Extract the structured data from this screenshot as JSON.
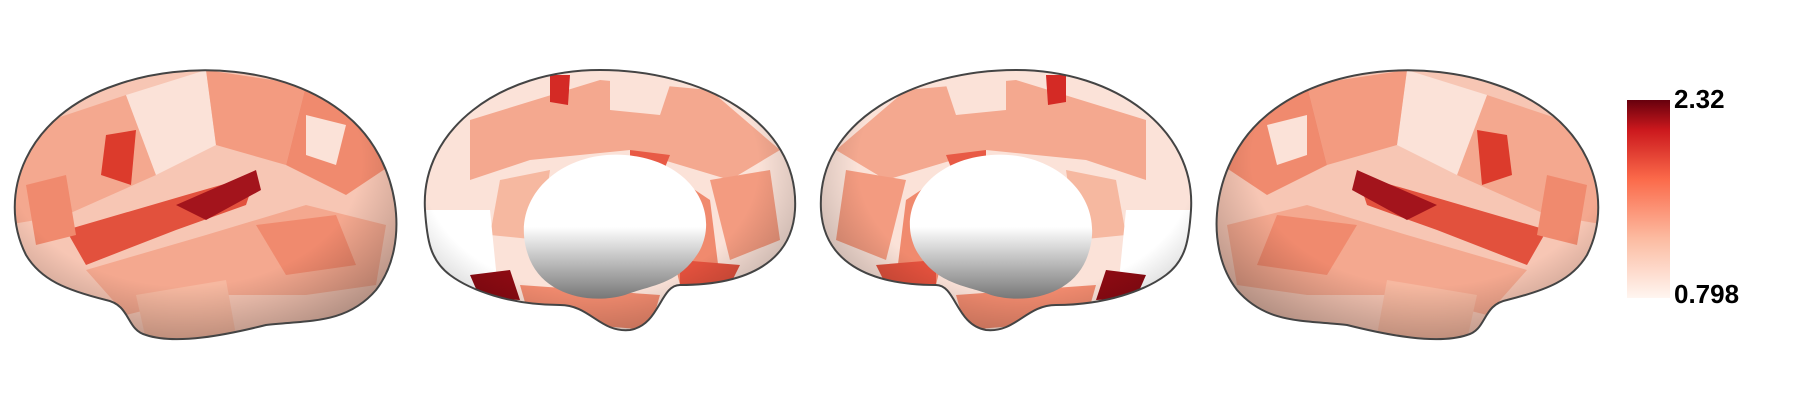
{
  "colorbar": {
    "max": 2.32,
    "min": 0.798
  }
}
